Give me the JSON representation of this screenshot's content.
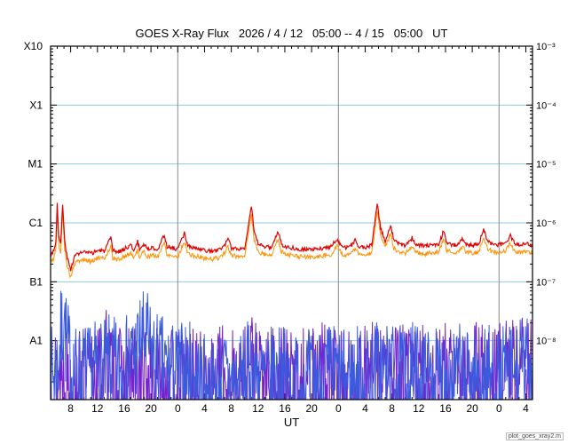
{
  "title": "GOES X-Ray Flux   2026 / 4 / 12   05:00 -- 4 / 15   05:00   UT",
  "xlabel": "UT",
  "watermark": "plot_goes_xray2.m",
  "colors": {
    "background": "#ffffff",
    "frame": "#000000",
    "gridline_blue": "#8fc9e6",
    "day_line_gray": "#8a8a8a",
    "long_primary_red": "#e00000",
    "long_secondary_orange": "#ff9000",
    "short_primary_blue": "#3c5bdc",
    "short_secondary_purple": "#7722cc"
  },
  "axes": {
    "x_range_hours": [
      0,
      72
    ],
    "x_start_label": "2026-04-12 05:00 UT",
    "y_exp_top": -3,
    "y_exp_bottom": -9,
    "left_labels": [
      {
        "text": "X10",
        "exp": -3
      },
      {
        "text": "X1",
        "exp": -4
      },
      {
        "text": "M1",
        "exp": -5
      },
      {
        "text": "C1",
        "exp": -6
      },
      {
        "text": "B1",
        "exp": -7
      },
      {
        "text": "A1",
        "exp": -8
      }
    ],
    "right_labels": [
      {
        "text": "10⁻³",
        "exp": -3
      },
      {
        "text": "10⁻⁴",
        "exp": -4
      },
      {
        "text": "10⁻⁵",
        "exp": -5
      },
      {
        "text": "10⁻⁶",
        "exp": -6
      },
      {
        "text": "10⁻⁷",
        "exp": -7
      },
      {
        "text": "10⁻⁸",
        "exp": -8
      }
    ],
    "grid_exps": [
      -4,
      -5,
      -6,
      -7,
      -8
    ],
    "day_lines_hours": [
      19,
      43,
      67
    ],
    "x_ticks": [
      {
        "hour": 3,
        "label": "8"
      },
      {
        "hour": 7,
        "label": "12"
      },
      {
        "hour": 11,
        "label": "16"
      },
      {
        "hour": 15,
        "label": "20"
      },
      {
        "hour": 19,
        "label": "0"
      },
      {
        "hour": 23,
        "label": "4"
      },
      {
        "hour": 27,
        "label": "8"
      },
      {
        "hour": 31,
        "label": "12"
      },
      {
        "hour": 35,
        "label": "16"
      },
      {
        "hour": 39,
        "label": "20"
      },
      {
        "hour": 43,
        "label": "0"
      },
      {
        "hour": 47,
        "label": "4"
      },
      {
        "hour": 51,
        "label": "8"
      },
      {
        "hour": 55,
        "label": "12"
      },
      {
        "hour": 59,
        "label": "16"
      },
      {
        "hour": 63,
        "label": "20"
      },
      {
        "hour": 67,
        "label": "0"
      },
      {
        "hour": 71,
        "label": "4"
      }
    ]
  },
  "chart_data": {
    "type": "line",
    "title": "GOES X-Ray Flux 2026/4/12 05:00 -- 4/15 05:00 UT",
    "x_unit": "hours since 2026-04-12 05:00 UT",
    "y_unit": "W m^-2 (log scale, 1e-9 to 1e-3)",
    "series": [
      {
        "name": "xray-long-primary",
        "color": "#e00000",
        "jitter": 0.035,
        "seed": 3,
        "points": [
          [
            0,
            3e-07
          ],
          [
            0.5,
            3.4e-07
          ],
          [
            0.8,
            5e-07
          ],
          [
            1.0,
            2.3e-06
          ],
          [
            1.2,
            6e-07
          ],
          [
            1.5,
            4.2e-07
          ],
          [
            1.8,
            2.1e-06
          ],
          [
            2.1,
            5e-07
          ],
          [
            2.5,
            2.5e-07
          ],
          [
            3.0,
            1.6e-07
          ],
          [
            3.5,
            2.6e-07
          ],
          [
            4.0,
            3e-07
          ],
          [
            5.0,
            3.2e-07
          ],
          [
            6.0,
            3e-07
          ],
          [
            7.0,
            3.4e-07
          ],
          [
            8.0,
            3.3e-07
          ],
          [
            9.0,
            5.5e-07
          ],
          [
            9.3,
            3.4e-07
          ],
          [
            10.0,
            3.2e-07
          ],
          [
            11.0,
            3.6e-07
          ],
          [
            12.0,
            4.2e-07
          ],
          [
            12.5,
            3.4e-07
          ],
          [
            13.0,
            4.8e-07
          ],
          [
            13.3,
            3.6e-07
          ],
          [
            14.0,
            4.4e-07
          ],
          [
            14.5,
            3.6e-07
          ],
          [
            15.0,
            3.8e-07
          ],
          [
            16.0,
            3.6e-07
          ],
          [
            17.0,
            6.2e-07
          ],
          [
            17.4,
            4e-07
          ],
          [
            18.0,
            3.8e-07
          ],
          [
            19.0,
            3.6e-07
          ],
          [
            20.0,
            6.6e-07
          ],
          [
            20.5,
            4.2e-07
          ],
          [
            21.0,
            3.8e-07
          ],
          [
            22.0,
            3.6e-07
          ],
          [
            23.0,
            3.4e-07
          ],
          [
            24.0,
            3.3e-07
          ],
          [
            25.0,
            3.4e-07
          ],
          [
            26.0,
            4.2e-07
          ],
          [
            26.5,
            5.2e-07
          ],
          [
            27.0,
            3.8e-07
          ],
          [
            28.0,
            3.6e-07
          ],
          [
            29.0,
            3.8e-07
          ],
          [
            30.0,
            1.9e-06
          ],
          [
            30.4,
            7e-07
          ],
          [
            31.0,
            4.4e-07
          ],
          [
            32.0,
            4e-07
          ],
          [
            33.0,
            3.8e-07
          ],
          [
            34.0,
            7.2e-07
          ],
          [
            34.5,
            4.4e-07
          ],
          [
            35.0,
            4e-07
          ],
          [
            36.0,
            3.8e-07
          ],
          [
            37.0,
            3.6e-07
          ],
          [
            38.0,
            3.6e-07
          ],
          [
            39.0,
            3.5e-07
          ],
          [
            40.0,
            3.6e-07
          ],
          [
            41.0,
            3.8e-07
          ],
          [
            42.0,
            4e-07
          ],
          [
            42.8,
            5.4e-07
          ],
          [
            43.5,
            4e-07
          ],
          [
            44.0,
            3.8e-07
          ],
          [
            45.0,
            4.2e-07
          ],
          [
            45.5,
            5e-07
          ],
          [
            46.0,
            4e-07
          ],
          [
            47.0,
            3.8e-07
          ],
          [
            48.0,
            4.2e-07
          ],
          [
            48.8,
            2.2e-06
          ],
          [
            49.3,
            8e-07
          ],
          [
            50.0,
            5e-07
          ],
          [
            50.8,
            9e-07
          ],
          [
            51.3,
            5e-07
          ],
          [
            52.0,
            4.4e-07
          ],
          [
            53.0,
            4.2e-07
          ],
          [
            54.0,
            5.5e-07
          ],
          [
            54.5,
            4.4e-07
          ],
          [
            55.0,
            4.2e-07
          ],
          [
            56.0,
            4e-07
          ],
          [
            57.0,
            4.2e-07
          ],
          [
            58.0,
            4.4e-07
          ],
          [
            58.7,
            7.2e-07
          ],
          [
            59.2,
            4.6e-07
          ],
          [
            60.0,
            4.2e-07
          ],
          [
            61.0,
            4.4e-07
          ],
          [
            61.5,
            5.4e-07
          ],
          [
            62.0,
            4.4e-07
          ],
          [
            63.0,
            4.2e-07
          ],
          [
            64.0,
            4.4e-07
          ],
          [
            64.7,
            8e-07
          ],
          [
            65.2,
            5e-07
          ],
          [
            66.0,
            4.4e-07
          ],
          [
            67.0,
            4.2e-07
          ],
          [
            68.0,
            4.6e-07
          ],
          [
            68.7,
            6e-07
          ],
          [
            69.3,
            4.6e-07
          ],
          [
            70.0,
            4.2e-07
          ],
          [
            71.0,
            4.4e-07
          ],
          [
            72.0,
            4.2e-07
          ]
        ]
      },
      {
        "name": "xray-long-secondary",
        "color": "#ff9000",
        "derived_from": 0,
        "ratio": 0.74,
        "jitter": 0.04,
        "seed": 5
      },
      {
        "name": "xray-short-primary",
        "color": "#3c5bdc",
        "noise_down": 1.4,
        "noise_up": 0.35,
        "seed": 7,
        "step": 0.08,
        "envelope": [
          [
            0,
            8e-09
          ],
          [
            1,
            1.2e-08
          ],
          [
            1.8,
            6e-08
          ],
          [
            2.0,
            1.5e-07
          ],
          [
            2.2,
            4e-08
          ],
          [
            3,
            1.2e-08
          ],
          [
            4,
            8e-09
          ],
          [
            5,
            1e-08
          ],
          [
            6,
            8e-09
          ],
          [
            7,
            1.2e-08
          ],
          [
            8,
            1e-08
          ],
          [
            9,
            1.4e-08
          ],
          [
            10,
            1e-08
          ],
          [
            11,
            1.2e-08
          ],
          [
            12,
            1.5e-08
          ],
          [
            13,
            2.5e-08
          ],
          [
            13.5,
            3.2e-08
          ],
          [
            14,
            3.5e-08
          ],
          [
            14.5,
            3e-08
          ],
          [
            15,
            2e-08
          ],
          [
            16,
            1.4e-08
          ],
          [
            17,
            1.2e-08
          ],
          [
            18,
            1e-08
          ],
          [
            19,
            9e-09
          ],
          [
            20,
            1.1e-08
          ],
          [
            21,
            1e-08
          ],
          [
            22,
            8e-09
          ],
          [
            23,
            6e-09
          ],
          [
            24,
            5e-09
          ],
          [
            25,
            6e-09
          ],
          [
            26,
            8e-09
          ],
          [
            27,
            7e-09
          ],
          [
            28,
            6e-09
          ],
          [
            29,
            8e-09
          ],
          [
            30,
            1.2e-08
          ],
          [
            31,
            9e-09
          ],
          [
            32,
            7e-09
          ],
          [
            33,
            8e-09
          ],
          [
            34,
            1e-08
          ],
          [
            35,
            8e-09
          ],
          [
            36,
            6e-09
          ],
          [
            37,
            7e-09
          ],
          [
            38,
            8e-09
          ],
          [
            39,
            7e-09
          ],
          [
            40,
            8e-09
          ],
          [
            41,
            9e-09
          ],
          [
            42,
            1e-08
          ],
          [
            43,
            8e-09
          ],
          [
            44,
            7e-09
          ],
          [
            45,
            8e-09
          ],
          [
            46,
            9e-09
          ],
          [
            47,
            8e-09
          ],
          [
            48,
            9e-09
          ],
          [
            49,
            1.2e-08
          ],
          [
            50,
            1e-08
          ],
          [
            51,
            9e-09
          ],
          [
            52,
            8e-09
          ],
          [
            53,
            9e-09
          ],
          [
            54,
            1e-08
          ],
          [
            55,
            9e-09
          ],
          [
            56,
            8e-09
          ],
          [
            57,
            7e-09
          ],
          [
            58,
            8e-09
          ],
          [
            59,
            9e-09
          ],
          [
            60,
            8e-09
          ],
          [
            61,
            9e-09
          ],
          [
            62,
            8e-09
          ],
          [
            63,
            7e-09
          ],
          [
            64,
            8e-09
          ],
          [
            65,
            9e-09
          ],
          [
            66,
            8e-09
          ],
          [
            67,
            7e-09
          ],
          [
            68,
            9e-09
          ],
          [
            69,
            1e-08
          ],
          [
            70,
            1.1e-08
          ],
          [
            71,
            1.3e-08
          ],
          [
            72,
            1.2e-08
          ]
        ]
      },
      {
        "name": "xray-short-secondary",
        "color": "#7722cc",
        "noise_down": 1.4,
        "noise_up": 0.35,
        "seed": 13,
        "step": 0.08,
        "envelope": [
          [
            0,
            1e-08
          ],
          [
            1,
            8e-09
          ],
          [
            2,
            1e-08
          ],
          [
            3,
            7e-09
          ],
          [
            4,
            6e-09
          ],
          [
            5,
            8e-09
          ],
          [
            6,
            1e-08
          ],
          [
            7,
            9e-09
          ],
          [
            8,
            1.4e-08
          ],
          [
            8.5,
            2e-08
          ],
          [
            9,
            1e-08
          ],
          [
            10,
            8e-09
          ],
          [
            11,
            7e-09
          ],
          [
            12,
            8e-09
          ],
          [
            13,
            9e-09
          ],
          [
            14,
            8e-09
          ],
          [
            15,
            7e-09
          ],
          [
            16,
            8e-09
          ],
          [
            17,
            9e-09
          ],
          [
            18,
            8e-09
          ],
          [
            19,
            7e-09
          ],
          [
            20,
            8e-09
          ],
          [
            21,
            9e-09
          ],
          [
            22,
            7e-09
          ],
          [
            23,
            6e-09
          ],
          [
            24,
            7e-09
          ],
          [
            25,
            8e-09
          ],
          [
            26,
            9e-09
          ],
          [
            27,
            8e-09
          ],
          [
            28,
            7e-09
          ],
          [
            29,
            9e-09
          ],
          [
            30,
            2.2e-08
          ],
          [
            30.5,
            1.2e-08
          ],
          [
            31,
            8e-09
          ],
          [
            32,
            7e-09
          ],
          [
            33,
            8e-09
          ],
          [
            34,
            9e-09
          ],
          [
            35,
            8e-09
          ],
          [
            36,
            7e-09
          ],
          [
            37,
            8e-09
          ],
          [
            38,
            9e-09
          ],
          [
            39,
            8e-09
          ],
          [
            40,
            9e-09
          ],
          [
            41,
            1e-08
          ],
          [
            42,
            9e-09
          ],
          [
            43,
            8e-09
          ],
          [
            44,
            7e-09
          ],
          [
            45,
            8e-09
          ],
          [
            46,
            9e-09
          ],
          [
            47,
            8e-09
          ],
          [
            48,
            1e-08
          ],
          [
            49,
            1.4e-08
          ],
          [
            50,
            1e-08
          ],
          [
            51,
            9e-09
          ],
          [
            52,
            8e-09
          ],
          [
            53,
            9e-09
          ],
          [
            54,
            1.1e-08
          ],
          [
            55,
            9e-09
          ],
          [
            56,
            8e-09
          ],
          [
            57,
            9e-09
          ],
          [
            58,
            1e-08
          ],
          [
            59,
            9e-09
          ],
          [
            60,
            8e-09
          ],
          [
            61,
            9e-09
          ],
          [
            62,
            1e-08
          ],
          [
            63,
            9e-09
          ],
          [
            64,
            1e-08
          ],
          [
            65,
            1.1e-08
          ],
          [
            66,
            1e-08
          ],
          [
            67,
            9e-09
          ],
          [
            68,
            1e-08
          ],
          [
            69,
            1.2e-08
          ],
          [
            70,
            1.4e-08
          ],
          [
            71,
            1.6e-08
          ],
          [
            72,
            1.4e-08
          ]
        ]
      }
    ]
  }
}
